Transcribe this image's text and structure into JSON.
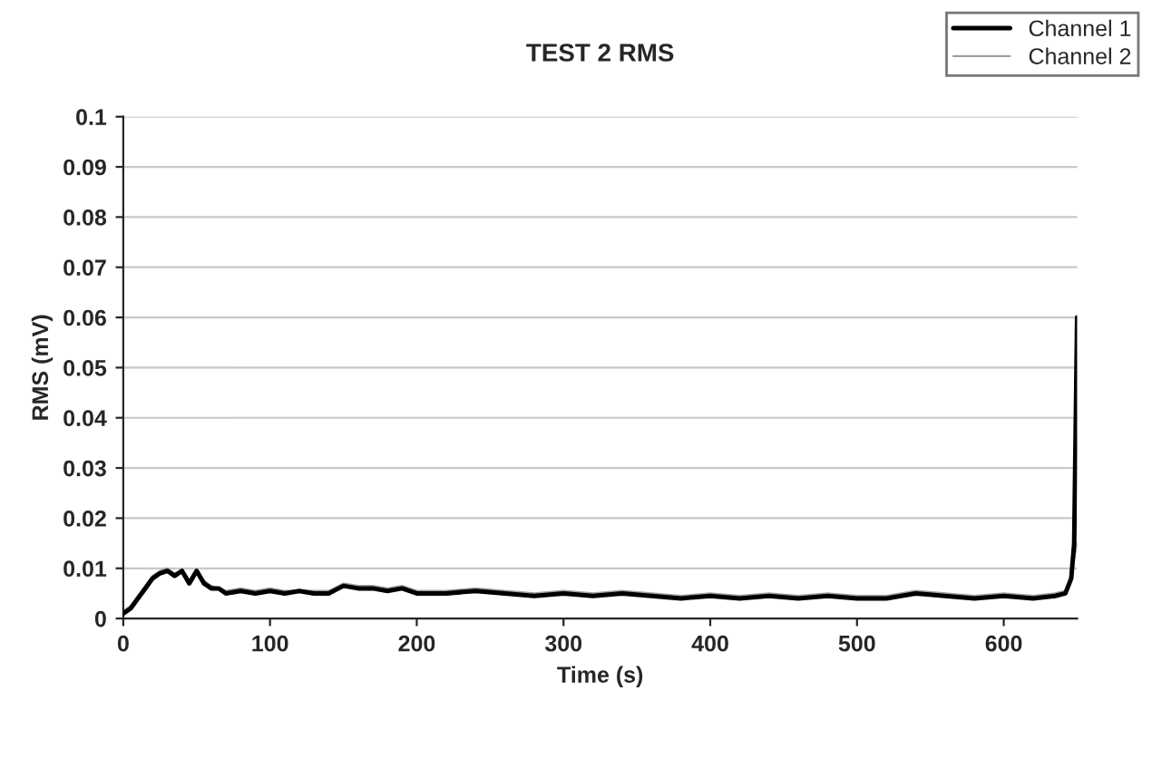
{
  "chart_data": {
    "type": "line",
    "title": "TEST 2 RMS",
    "xlabel": "Time (s)",
    "ylabel": "RMS (mV)",
    "xlim": [
      0,
      650
    ],
    "xticks": [
      0,
      100,
      200,
      300,
      400,
      500,
      600
    ],
    "ylim": [
      0,
      0.1
    ],
    "yticks": [
      0,
      0.01,
      0.02,
      0.03,
      0.04,
      0.05,
      0.06,
      0.07,
      0.08,
      0.09,
      0.1
    ],
    "grid": "y",
    "legend": "top right",
    "marker": "none",
    "line_style": "solid",
    "series": [
      {
        "name": "Channel 1",
        "color": "#000000",
        "x": [
          0,
          5,
          10,
          15,
          20,
          25,
          30,
          35,
          40,
          45,
          50,
          55,
          60,
          65,
          70,
          80,
          90,
          100,
          110,
          120,
          130,
          140,
          150,
          160,
          170,
          180,
          190,
          200,
          220,
          240,
          260,
          280,
          300,
          320,
          340,
          360,
          380,
          400,
          420,
          440,
          460,
          480,
          500,
          520,
          540,
          560,
          580,
          600,
          620,
          635,
          642,
          646,
          648,
          650
        ],
        "values": [
          0.001,
          0.002,
          0.004,
          0.006,
          0.008,
          0.009,
          0.0095,
          0.0085,
          0.0095,
          0.007,
          0.0095,
          0.007,
          0.006,
          0.006,
          0.005,
          0.0055,
          0.005,
          0.0055,
          0.005,
          0.0055,
          0.005,
          0.005,
          0.0065,
          0.006,
          0.006,
          0.0055,
          0.006,
          0.005,
          0.005,
          0.0055,
          0.005,
          0.0045,
          0.005,
          0.0045,
          0.005,
          0.0045,
          0.004,
          0.0045,
          0.004,
          0.0045,
          0.004,
          0.0045,
          0.004,
          0.004,
          0.005,
          0.0045,
          0.004,
          0.0045,
          0.004,
          0.0045,
          0.005,
          0.008,
          0.015,
          0.06
        ]
      },
      {
        "name": "Channel 2",
        "color": "#a0a0a0",
        "x": [
          0,
          5,
          10,
          15,
          20,
          25,
          30,
          35,
          40,
          45,
          50,
          55,
          60,
          65,
          70,
          80,
          90,
          100,
          110,
          120,
          130,
          140,
          150,
          160,
          170,
          180,
          190,
          200,
          220,
          240,
          260,
          280,
          300,
          320,
          340,
          360,
          380,
          400,
          420,
          440,
          460,
          480,
          500,
          520,
          540,
          560,
          580,
          600,
          620,
          635,
          642,
          646,
          648,
          650
        ],
        "values": [
          0.0015,
          0.0025,
          0.0045,
          0.0065,
          0.0085,
          0.0095,
          0.01,
          0.009,
          0.0095,
          0.0075,
          0.0095,
          0.0075,
          0.0065,
          0.006,
          0.0055,
          0.006,
          0.0055,
          0.006,
          0.0055,
          0.0055,
          0.0055,
          0.0055,
          0.007,
          0.0065,
          0.0065,
          0.006,
          0.0065,
          0.0055,
          0.0055,
          0.006,
          0.0055,
          0.005,
          0.0055,
          0.005,
          0.0055,
          0.005,
          0.0045,
          0.005,
          0.0045,
          0.005,
          0.0045,
          0.005,
          0.0045,
          0.0045,
          0.0055,
          0.005,
          0.0045,
          0.005,
          0.0045,
          0.005,
          0.0055,
          0.008,
          0.012,
          0.015
        ]
      }
    ]
  }
}
